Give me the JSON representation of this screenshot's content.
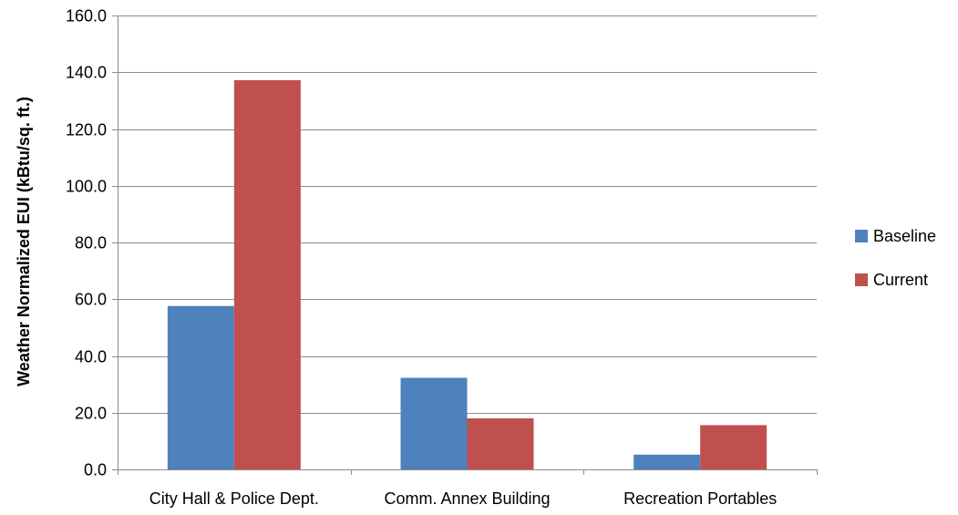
{
  "chart_data": {
    "type": "bar",
    "title": "",
    "xlabel": "",
    "ylabel": "Weather Normalized EUI (kBtu/sq. ft.)",
    "categories": [
      "City Hall & Police Dept.",
      "Comm. Annex Building",
      "Recreation Portables"
    ],
    "series": [
      {
        "name": "Baseline",
        "color": "#4F81BD",
        "values": [
          57.6,
          32.3,
          5.2
        ]
      },
      {
        "name": "Current",
        "color": "#C0504D",
        "values": [
          137.2,
          18.0,
          15.6
        ]
      }
    ],
    "ylim": [
      0,
      160
    ],
    "yticks": [
      "0.0",
      "20.0",
      "40.0",
      "60.0",
      "80.0",
      "100.0",
      "120.0",
      "140.0",
      "160.0"
    ],
    "grid": true,
    "legend_position": "right"
  }
}
